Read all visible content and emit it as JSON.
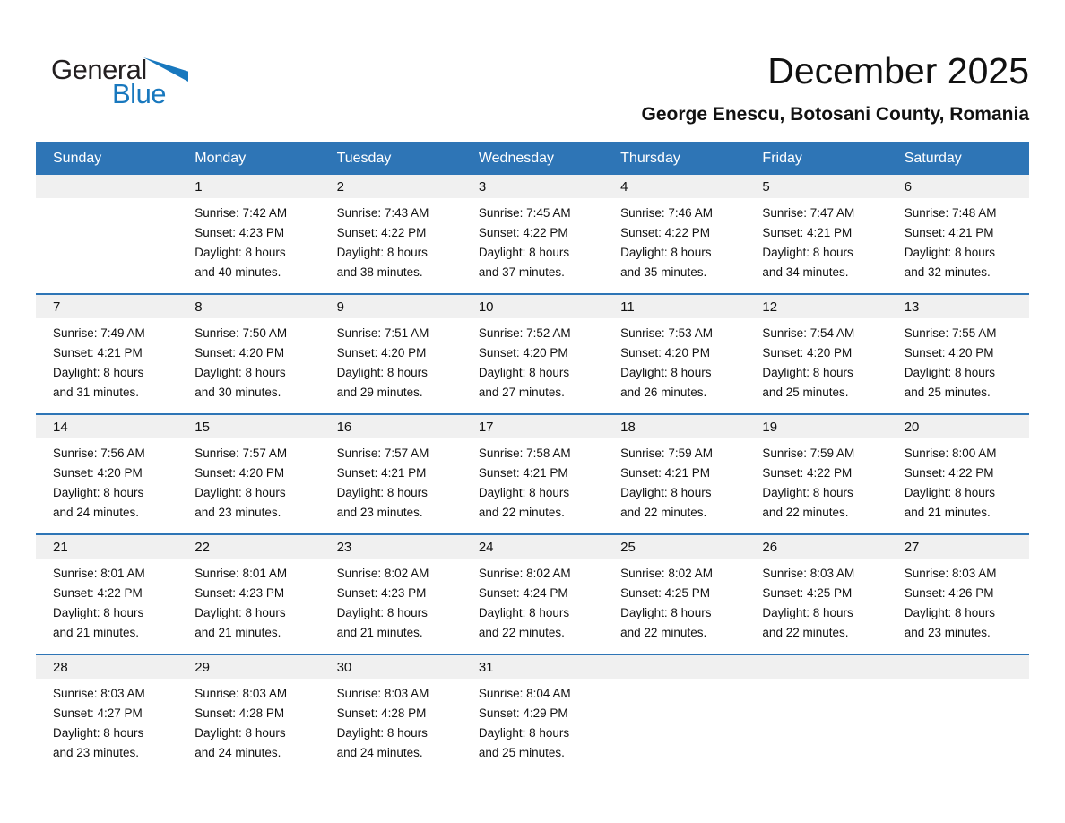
{
  "logo": {
    "part1": "General",
    "part2": "Blue"
  },
  "header": {
    "title": "December 2025",
    "subtitle": "George Enescu, Botosani County, Romania"
  },
  "colors": {
    "header_bg": "#2E75B6",
    "header_text": "#FFFFFF",
    "row_border": "#2E75B6",
    "day_band_bg": "#F0F0F0",
    "logo_dark": "#231F20",
    "logo_blue": "#1878BE"
  },
  "calendar": {
    "weekday_headers": [
      "Sunday",
      "Monday",
      "Tuesday",
      "Wednesday",
      "Thursday",
      "Friday",
      "Saturday"
    ],
    "labels": {
      "sunrise": "Sunrise:",
      "sunset": "Sunset:",
      "daylight": "Daylight:"
    },
    "weeks": [
      [
        null,
        {
          "day": "1",
          "sunrise": "7:42 AM",
          "sunset": "4:23 PM",
          "daylight": "8 hours and 40 minutes."
        },
        {
          "day": "2",
          "sunrise": "7:43 AM",
          "sunset": "4:22 PM",
          "daylight": "8 hours and 38 minutes."
        },
        {
          "day": "3",
          "sunrise": "7:45 AM",
          "sunset": "4:22 PM",
          "daylight": "8 hours and 37 minutes."
        },
        {
          "day": "4",
          "sunrise": "7:46 AM",
          "sunset": "4:22 PM",
          "daylight": "8 hours and 35 minutes."
        },
        {
          "day": "5",
          "sunrise": "7:47 AM",
          "sunset": "4:21 PM",
          "daylight": "8 hours and 34 minutes."
        },
        {
          "day": "6",
          "sunrise": "7:48 AM",
          "sunset": "4:21 PM",
          "daylight": "8 hours and 32 minutes."
        }
      ],
      [
        {
          "day": "7",
          "sunrise": "7:49 AM",
          "sunset": "4:21 PM",
          "daylight": "8 hours and 31 minutes."
        },
        {
          "day": "8",
          "sunrise": "7:50 AM",
          "sunset": "4:20 PM",
          "daylight": "8 hours and 30 minutes."
        },
        {
          "day": "9",
          "sunrise": "7:51 AM",
          "sunset": "4:20 PM",
          "daylight": "8 hours and 29 minutes."
        },
        {
          "day": "10",
          "sunrise": "7:52 AM",
          "sunset": "4:20 PM",
          "daylight": "8 hours and 27 minutes."
        },
        {
          "day": "11",
          "sunrise": "7:53 AM",
          "sunset": "4:20 PM",
          "daylight": "8 hours and 26 minutes."
        },
        {
          "day": "12",
          "sunrise": "7:54 AM",
          "sunset": "4:20 PM",
          "daylight": "8 hours and 25 minutes."
        },
        {
          "day": "13",
          "sunrise": "7:55 AM",
          "sunset": "4:20 PM",
          "daylight": "8 hours and 25 minutes."
        }
      ],
      [
        {
          "day": "14",
          "sunrise": "7:56 AM",
          "sunset": "4:20 PM",
          "daylight": "8 hours and 24 minutes."
        },
        {
          "day": "15",
          "sunrise": "7:57 AM",
          "sunset": "4:20 PM",
          "daylight": "8 hours and 23 minutes."
        },
        {
          "day": "16",
          "sunrise": "7:57 AM",
          "sunset": "4:21 PM",
          "daylight": "8 hours and 23 minutes."
        },
        {
          "day": "17",
          "sunrise": "7:58 AM",
          "sunset": "4:21 PM",
          "daylight": "8 hours and 22 minutes."
        },
        {
          "day": "18",
          "sunrise": "7:59 AM",
          "sunset": "4:21 PM",
          "daylight": "8 hours and 22 minutes."
        },
        {
          "day": "19",
          "sunrise": "7:59 AM",
          "sunset": "4:22 PM",
          "daylight": "8 hours and 22 minutes."
        },
        {
          "day": "20",
          "sunrise": "8:00 AM",
          "sunset": "4:22 PM",
          "daylight": "8 hours and 21 minutes."
        }
      ],
      [
        {
          "day": "21",
          "sunrise": "8:01 AM",
          "sunset": "4:22 PM",
          "daylight": "8 hours and 21 minutes."
        },
        {
          "day": "22",
          "sunrise": "8:01 AM",
          "sunset": "4:23 PM",
          "daylight": "8 hours and 21 minutes."
        },
        {
          "day": "23",
          "sunrise": "8:02 AM",
          "sunset": "4:23 PM",
          "daylight": "8 hours and 21 minutes."
        },
        {
          "day": "24",
          "sunrise": "8:02 AM",
          "sunset": "4:24 PM",
          "daylight": "8 hours and 22 minutes."
        },
        {
          "day": "25",
          "sunrise": "8:02 AM",
          "sunset": "4:25 PM",
          "daylight": "8 hours and 22 minutes."
        },
        {
          "day": "26",
          "sunrise": "8:03 AM",
          "sunset": "4:25 PM",
          "daylight": "8 hours and 22 minutes."
        },
        {
          "day": "27",
          "sunrise": "8:03 AM",
          "sunset": "4:26 PM",
          "daylight": "8 hours and 23 minutes."
        }
      ],
      [
        {
          "day": "28",
          "sunrise": "8:03 AM",
          "sunset": "4:27 PM",
          "daylight": "8 hours and 23 minutes."
        },
        {
          "day": "29",
          "sunrise": "8:03 AM",
          "sunset": "4:28 PM",
          "daylight": "8 hours and 24 minutes."
        },
        {
          "day": "30",
          "sunrise": "8:03 AM",
          "sunset": "4:28 PM",
          "daylight": "8 hours and 24 minutes."
        },
        {
          "day": "31",
          "sunrise": "8:04 AM",
          "sunset": "4:29 PM",
          "daylight": "8 hours and 25 minutes."
        },
        null,
        null,
        null
      ]
    ]
  }
}
